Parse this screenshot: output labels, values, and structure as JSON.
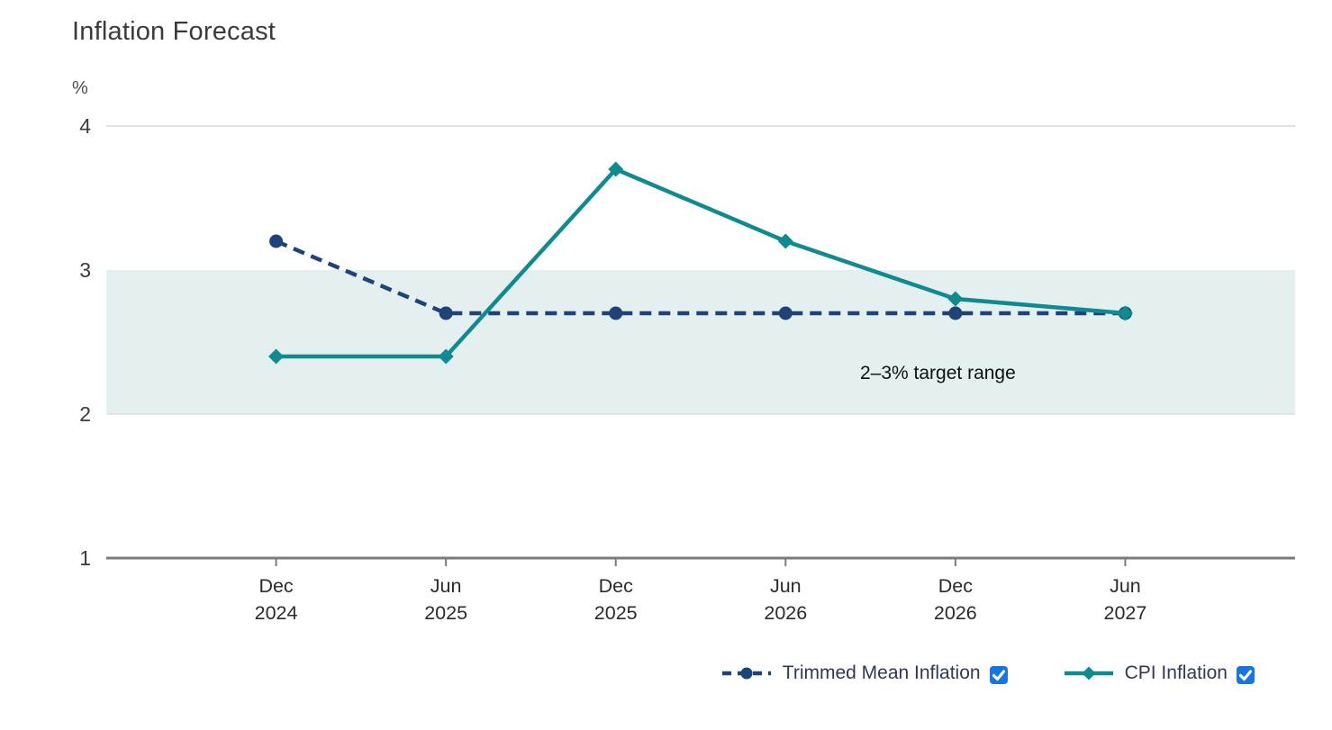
{
  "page": {
    "title": "Inflation Forecast"
  },
  "chart_data": {
    "type": "line",
    "title": "Inflation Forecast",
    "xlabel": "",
    "ylabel": "%",
    "categories": [
      "Dec 2024",
      "Jun 2025",
      "Dec 2025",
      "Jun 2026",
      "Dec 2026",
      "Jun 2027"
    ],
    "y_ticks": [
      4,
      3,
      2,
      1
    ],
    "ylim": [
      1,
      4.35
    ],
    "grid": "horizontal gridline at 4 and 2; baseline axis at 1",
    "legend_position": "bottom",
    "series": [
      {
        "name": "Trimmed Mean Inflation",
        "color": "#1f4378",
        "line_style": "dashed",
        "marker": "circle",
        "values": [
          3.2,
          2.7,
          2.7,
          2.7,
          2.7,
          2.7
        ],
        "checked": true
      },
      {
        "name": "CPI Inflation",
        "color": "#0f8a90",
        "line_style": "solid",
        "marker": "diamond",
        "values": [
          2.4,
          2.4,
          3.7,
          3.2,
          2.8,
          2.7
        ],
        "checked": true
      }
    ],
    "band": {
      "from": 2,
      "to": 3,
      "label": "2–3% target range",
      "color": "#e3f0ef"
    }
  },
  "colors": {
    "gridline": "#e3e3e3",
    "band_bottom_line": "#e0e4e5",
    "axis": "#7b7b7b",
    "tick_label": "#2b2b2b",
    "y_label": "#3a3a3a",
    "unit_label": "#4f4f4f",
    "annotation_text": "#101010",
    "checkbox_blue": "#1675e0"
  }
}
